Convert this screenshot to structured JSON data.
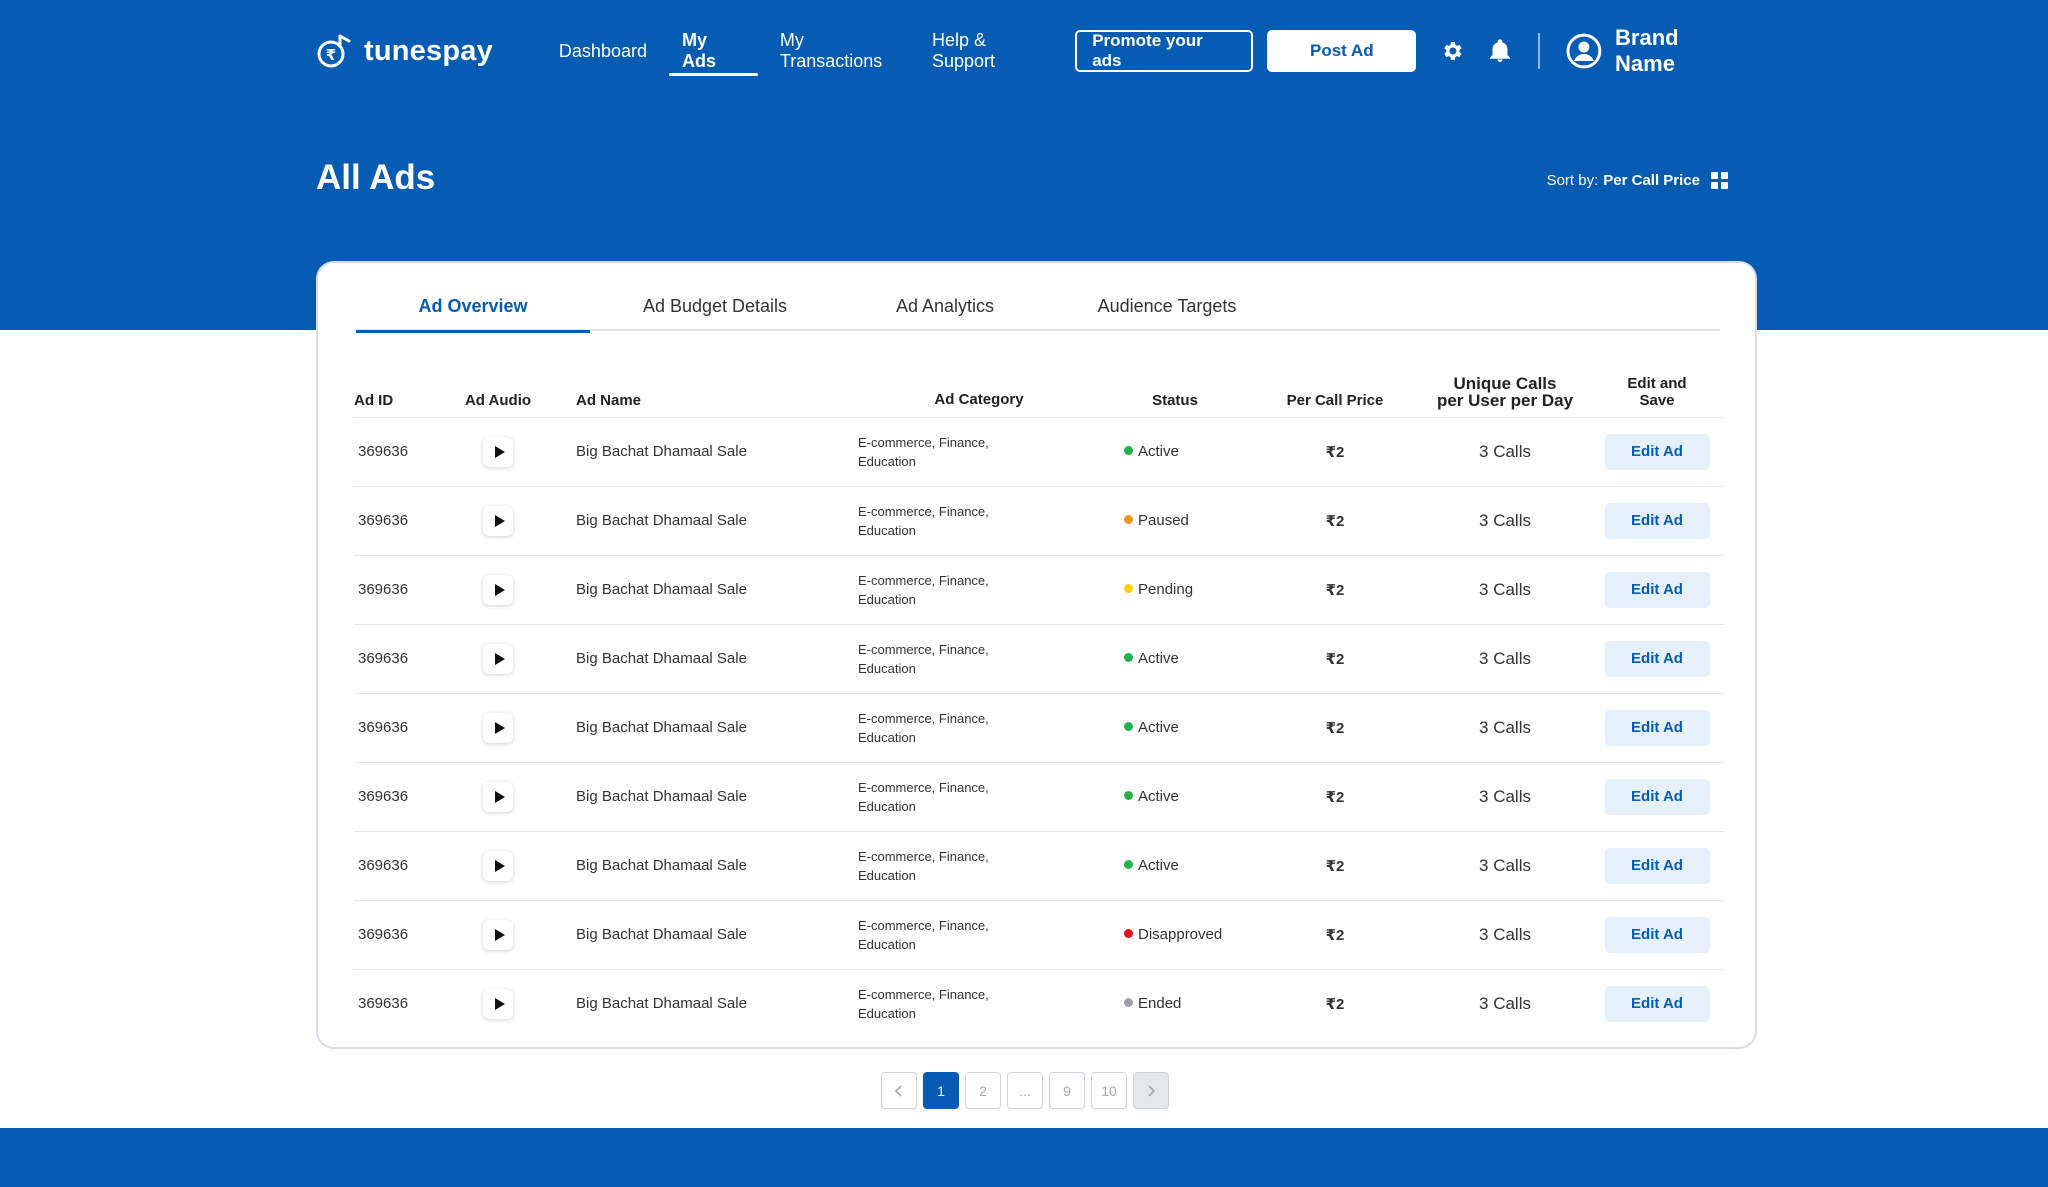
{
  "brand": {
    "name": "tunespay"
  },
  "nav": {
    "links": [
      "Dashboard",
      "My Ads",
      "My Transactions",
      "Help & Support"
    ],
    "active": "My Ads",
    "promote_label": "Promote your ads",
    "post_label": "Post Ad",
    "user_name": "Brand Name"
  },
  "page": {
    "title": "All Ads",
    "sort_prefix": "Sort by:",
    "sort_value": "Per Call Price"
  },
  "tabs": [
    "Ad Overview",
    "Ad Budget Details",
    "Ad Analytics",
    "Audience Targets"
  ],
  "table": {
    "headers": {
      "id": "Ad ID",
      "audio": "Ad Audio",
      "name": "Ad Name",
      "category": "Ad Category",
      "status": "Status",
      "price": "Per Call Price",
      "calls_line1": "Unique Calls",
      "calls_line2": "per User per Day",
      "edit_line1": "Edit and",
      "edit_line2": "Save"
    },
    "rows": [
      {
        "id": "369636",
        "name": "Big Bachat Dhamaal Sale",
        "cat1": "E-commerce, Finance,",
        "cat2": "Education",
        "status": "Active",
        "price": "₹2",
        "calls": "3 Calls",
        "edit": "Edit Ad"
      },
      {
        "id": "369636",
        "name": "Big Bachat Dhamaal Sale",
        "cat1": "E-commerce, Finance,",
        "cat2": "Education",
        "status": "Paused",
        "price": "₹2",
        "calls": "3 Calls",
        "edit": "Edit Ad"
      },
      {
        "id": "369636",
        "name": "Big Bachat Dhamaal Sale",
        "cat1": "E-commerce, Finance,",
        "cat2": "Education",
        "status": "Pending",
        "price": "₹2",
        "calls": "3 Calls",
        "edit": "Edit Ad"
      },
      {
        "id": "369636",
        "name": "Big Bachat Dhamaal Sale",
        "cat1": "E-commerce, Finance,",
        "cat2": "Education",
        "status": "Active",
        "price": "₹2",
        "calls": "3 Calls",
        "edit": "Edit Ad"
      },
      {
        "id": "369636",
        "name": "Big Bachat Dhamaal Sale",
        "cat1": "E-commerce, Finance,",
        "cat2": "Education",
        "status": "Active",
        "price": "₹2",
        "calls": "3 Calls",
        "edit": "Edit Ad"
      },
      {
        "id": "369636",
        "name": "Big Bachat Dhamaal Sale",
        "cat1": "E-commerce, Finance,",
        "cat2": "Education",
        "status": "Active",
        "price": "₹2",
        "calls": "3 Calls",
        "edit": "Edit Ad"
      },
      {
        "id": "369636",
        "name": "Big Bachat Dhamaal Sale",
        "cat1": "E-commerce, Finance,",
        "cat2": "Education",
        "status": "Active",
        "price": "₹2",
        "calls": "3 Calls",
        "edit": "Edit Ad"
      },
      {
        "id": "369636",
        "name": "Big Bachat Dhamaal Sale",
        "cat1": "E-commerce, Finance,",
        "cat2": "Education",
        "status": "Disapproved",
        "price": "₹2",
        "calls": "3 Calls",
        "edit": "Edit Ad"
      },
      {
        "id": "369636",
        "name": "Big Bachat Dhamaal Sale",
        "cat1": "E-commerce, Finance,",
        "cat2": "Education",
        "status": "Ended",
        "price": "₹2",
        "calls": "3 Calls",
        "edit": "Edit Ad"
      }
    ]
  },
  "status_colors": {
    "Active": "#22b14c",
    "Paused": "#f7931e",
    "Pending": "#f5d20a",
    "Disapproved": "#e0121c",
    "Ended": "#9aa0a6"
  },
  "pagination": {
    "pages": [
      "1",
      "2",
      "...",
      "9",
      "10"
    ],
    "current": "1"
  },
  "colors": {
    "primary": "#065cb3",
    "edit_bg": "#e6f0fb"
  }
}
